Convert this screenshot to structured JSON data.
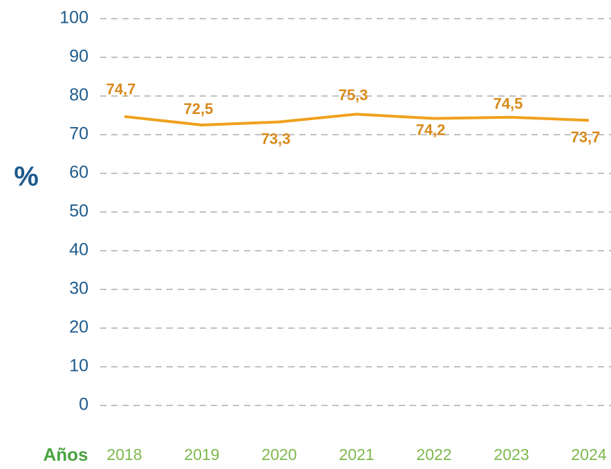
{
  "chart_data": {
    "type": "line",
    "x_label": "Años",
    "y_label": "%",
    "categories": [
      "2018",
      "2019",
      "2020",
      "2021",
      "2022",
      "2023",
      "2024"
    ],
    "series": [
      {
        "name": null,
        "color": "#f0a01e",
        "values": [
          74.7,
          72.5,
          73.3,
          75.3,
          74.2,
          74.5,
          73.7
        ],
        "value_labels": [
          "74,7",
          "72,5",
          "73,3",
          "75,3",
          "74,2",
          "74,5",
          "73,7"
        ]
      }
    ],
    "ylim": [
      0,
      100
    ],
    "yticks": [
      0,
      10,
      20,
      30,
      40,
      50,
      60,
      70,
      80,
      90,
      100
    ],
    "grid": true
  }
}
